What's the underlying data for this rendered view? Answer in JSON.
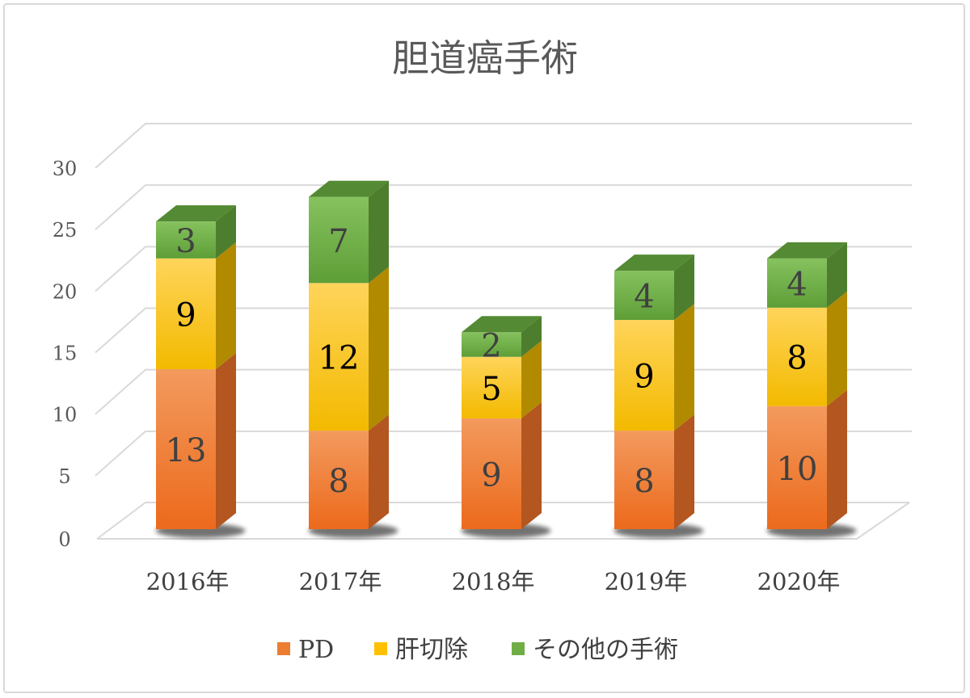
{
  "chart_data": {
    "type": "bar",
    "stacked": true,
    "three_d": true,
    "title": "胆道癌手術",
    "categories": [
      "2016年",
      "2017年",
      "2018年",
      "2019年",
      "2020年"
    ],
    "series": [
      {
        "name": "PD",
        "values": [
          13,
          8,
          9,
          8,
          10
        ],
        "color": "#ED7D31"
      },
      {
        "name": "肝切除",
        "values": [
          9,
          12,
          5,
          9,
          8
        ],
        "color": "#FFC000"
      },
      {
        "name": "その他の手術",
        "values": [
          3,
          7,
          2,
          4,
          4
        ],
        "color": "#70AD47"
      }
    ],
    "ylim": [
      0,
      30
    ],
    "yticks": [
      "0",
      "5",
      "10",
      "15",
      "20",
      "25",
      "30"
    ],
    "grid": true,
    "legend_position": "bottom"
  }
}
